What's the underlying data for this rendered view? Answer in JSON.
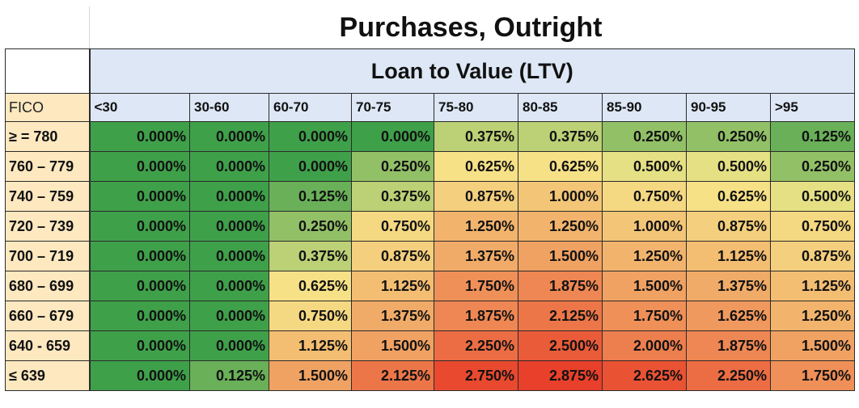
{
  "title": "Purchases, Outright",
  "ltv_header": "Loan to Value (LTV)",
  "fico_label": "FICO",
  "colors": {
    "low": "#3fa04a",
    "mid": "#f6e68a",
    "high": "#e8402a",
    "header_blue": "#dde7f5",
    "header_cream": "#fde8c0"
  },
  "chart_data": {
    "type": "heatmap",
    "title": "Purchases, Outright",
    "xlabel": "Loan to Value (LTV)",
    "ylabel": "FICO",
    "columns": [
      "<30",
      "30-60",
      "60-70",
      "70-75",
      "75-80",
      "80-85",
      "85-90",
      "90-95",
      ">95"
    ],
    "rows": [
      "≥ = 780",
      "760 – 779",
      "740 – 759",
      "720 – 739",
      "700 – 719",
      "680 – 699",
      "660 – 679",
      "640 - 659",
      "≤ 639"
    ],
    "cells": [
      [
        "0.000%",
        "0.000%",
        "0.000%",
        "0.000%",
        "0.375%",
        "0.375%",
        "0.250%",
        "0.250%",
        "0.125%"
      ],
      [
        "0.000%",
        "0.000%",
        "0.000%",
        "0.250%",
        "0.625%",
        "0.625%",
        "0.500%",
        "0.500%",
        "0.250%"
      ],
      [
        "0.000%",
        "0.000%",
        "0.125%",
        "0.375%",
        "0.875%",
        "1.000%",
        "0.750%",
        "0.625%",
        "0.500%"
      ],
      [
        "0.000%",
        "0.000%",
        "0.250%",
        "0.750%",
        "1.250%",
        "1.250%",
        "1.000%",
        "0.875%",
        "0.750%"
      ],
      [
        "0.000%",
        "0.000%",
        "0.375%",
        "0.875%",
        "1.375%",
        "1.500%",
        "1.250%",
        "1.125%",
        "0.875%"
      ],
      [
        "0.000%",
        "0.000%",
        "0.625%",
        "1.125%",
        "1.750%",
        "1.875%",
        "1.500%",
        "1.375%",
        "1.125%"
      ],
      [
        "0.000%",
        "0.000%",
        "0.750%",
        "1.375%",
        "1.875%",
        "2.125%",
        "1.750%",
        "1.625%",
        "1.250%"
      ],
      [
        "0.000%",
        "0.000%",
        "1.125%",
        "1.500%",
        "2.250%",
        "2.500%",
        "2.000%",
        "1.875%",
        "1.500%"
      ],
      [
        "0.000%",
        "0.125%",
        "1.500%",
        "2.125%",
        "2.750%",
        "2.875%",
        "2.625%",
        "2.250%",
        "1.750%"
      ]
    ],
    "values": [
      [
        0.0,
        0.0,
        0.0,
        0.0,
        0.375,
        0.375,
        0.25,
        0.25,
        0.125
      ],
      [
        0.0,
        0.0,
        0.0,
        0.25,
        0.625,
        0.625,
        0.5,
        0.5,
        0.25
      ],
      [
        0.0,
        0.0,
        0.125,
        0.375,
        0.875,
        1.0,
        0.75,
        0.625,
        0.5
      ],
      [
        0.0,
        0.0,
        0.25,
        0.75,
        1.25,
        1.25,
        1.0,
        0.875,
        0.75
      ],
      [
        0.0,
        0.0,
        0.375,
        0.875,
        1.375,
        1.5,
        1.25,
        1.125,
        0.875
      ],
      [
        0.0,
        0.0,
        0.625,
        1.125,
        1.75,
        1.875,
        1.5,
        1.375,
        1.125
      ],
      [
        0.0,
        0.0,
        0.75,
        1.375,
        1.875,
        2.125,
        1.75,
        1.625,
        1.25
      ],
      [
        0.0,
        0.0,
        1.125,
        1.5,
        2.25,
        2.5,
        2.0,
        1.875,
        1.5
      ],
      [
        0.0,
        0.125,
        1.5,
        2.125,
        2.75,
        2.875,
        2.625,
        2.25,
        1.75
      ]
    ],
    "color_scale": {
      "min": 0.0,
      "max": 2.875
    }
  }
}
